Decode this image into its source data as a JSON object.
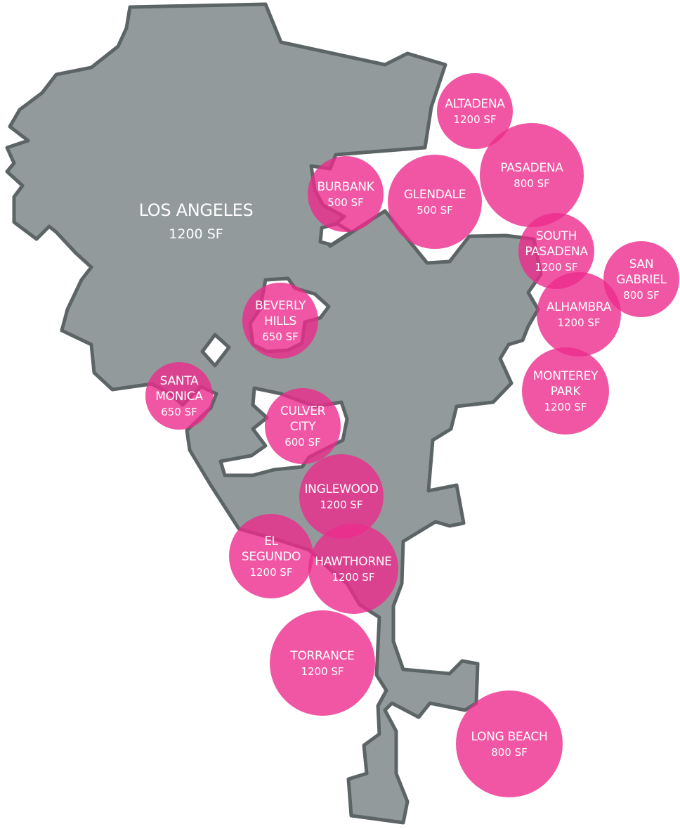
{
  "map": {
    "colors": {
      "land": "#929a9b",
      "border": "#5c6466",
      "circle": "#ec2c8c",
      "text": "#ffffff"
    },
    "main_city": {
      "name": "LOS ANGELES",
      "area": "1200 SF"
    },
    "cities": [
      {
        "id": "altadena",
        "lines": [
          "ALTADENA"
        ],
        "area": "1200 SF"
      },
      {
        "id": "pasadena",
        "lines": [
          "PASADENA"
        ],
        "area": "800 SF"
      },
      {
        "id": "burbank",
        "lines": [
          "BURBANK"
        ],
        "area": "500 SF"
      },
      {
        "id": "glendale",
        "lines": [
          "GLENDALE"
        ],
        "area": "500 SF"
      },
      {
        "id": "south-pasadena",
        "lines": [
          "SOUTH",
          "PASADENA"
        ],
        "area": "1200 SF"
      },
      {
        "id": "san-gabriel",
        "lines": [
          "SAN",
          "GABRIEL"
        ],
        "area": "800 SF"
      },
      {
        "id": "alhambra",
        "lines": [
          "ALHAMBRA"
        ],
        "area": "1200 SF"
      },
      {
        "id": "monterey-park",
        "lines": [
          "MONTEREY",
          "PARK"
        ],
        "area": "1200 SF"
      },
      {
        "id": "beverly-hills",
        "lines": [
          "BEVERLY",
          "HILLS"
        ],
        "area": "650 SF"
      },
      {
        "id": "santa-monica",
        "lines": [
          "SANTA",
          "MONICA"
        ],
        "area": "650 SF"
      },
      {
        "id": "culver-city",
        "lines": [
          "CULVER",
          "CITY"
        ],
        "area": "600 SF"
      },
      {
        "id": "inglewood",
        "lines": [
          "INGLEWOOD"
        ],
        "area": "1200 SF"
      },
      {
        "id": "el-segundo",
        "lines": [
          "EL",
          "SEGUNDO"
        ],
        "area": "1200 SF"
      },
      {
        "id": "hawthorne",
        "lines": [
          "HAWTHORNE"
        ],
        "area": "1200 SF"
      },
      {
        "id": "torrance",
        "lines": [
          "TORRANCE"
        ],
        "area": "1200 SF"
      },
      {
        "id": "long-beach",
        "lines": [
          "LONG BEACH"
        ],
        "area": "800 SF"
      }
    ]
  }
}
